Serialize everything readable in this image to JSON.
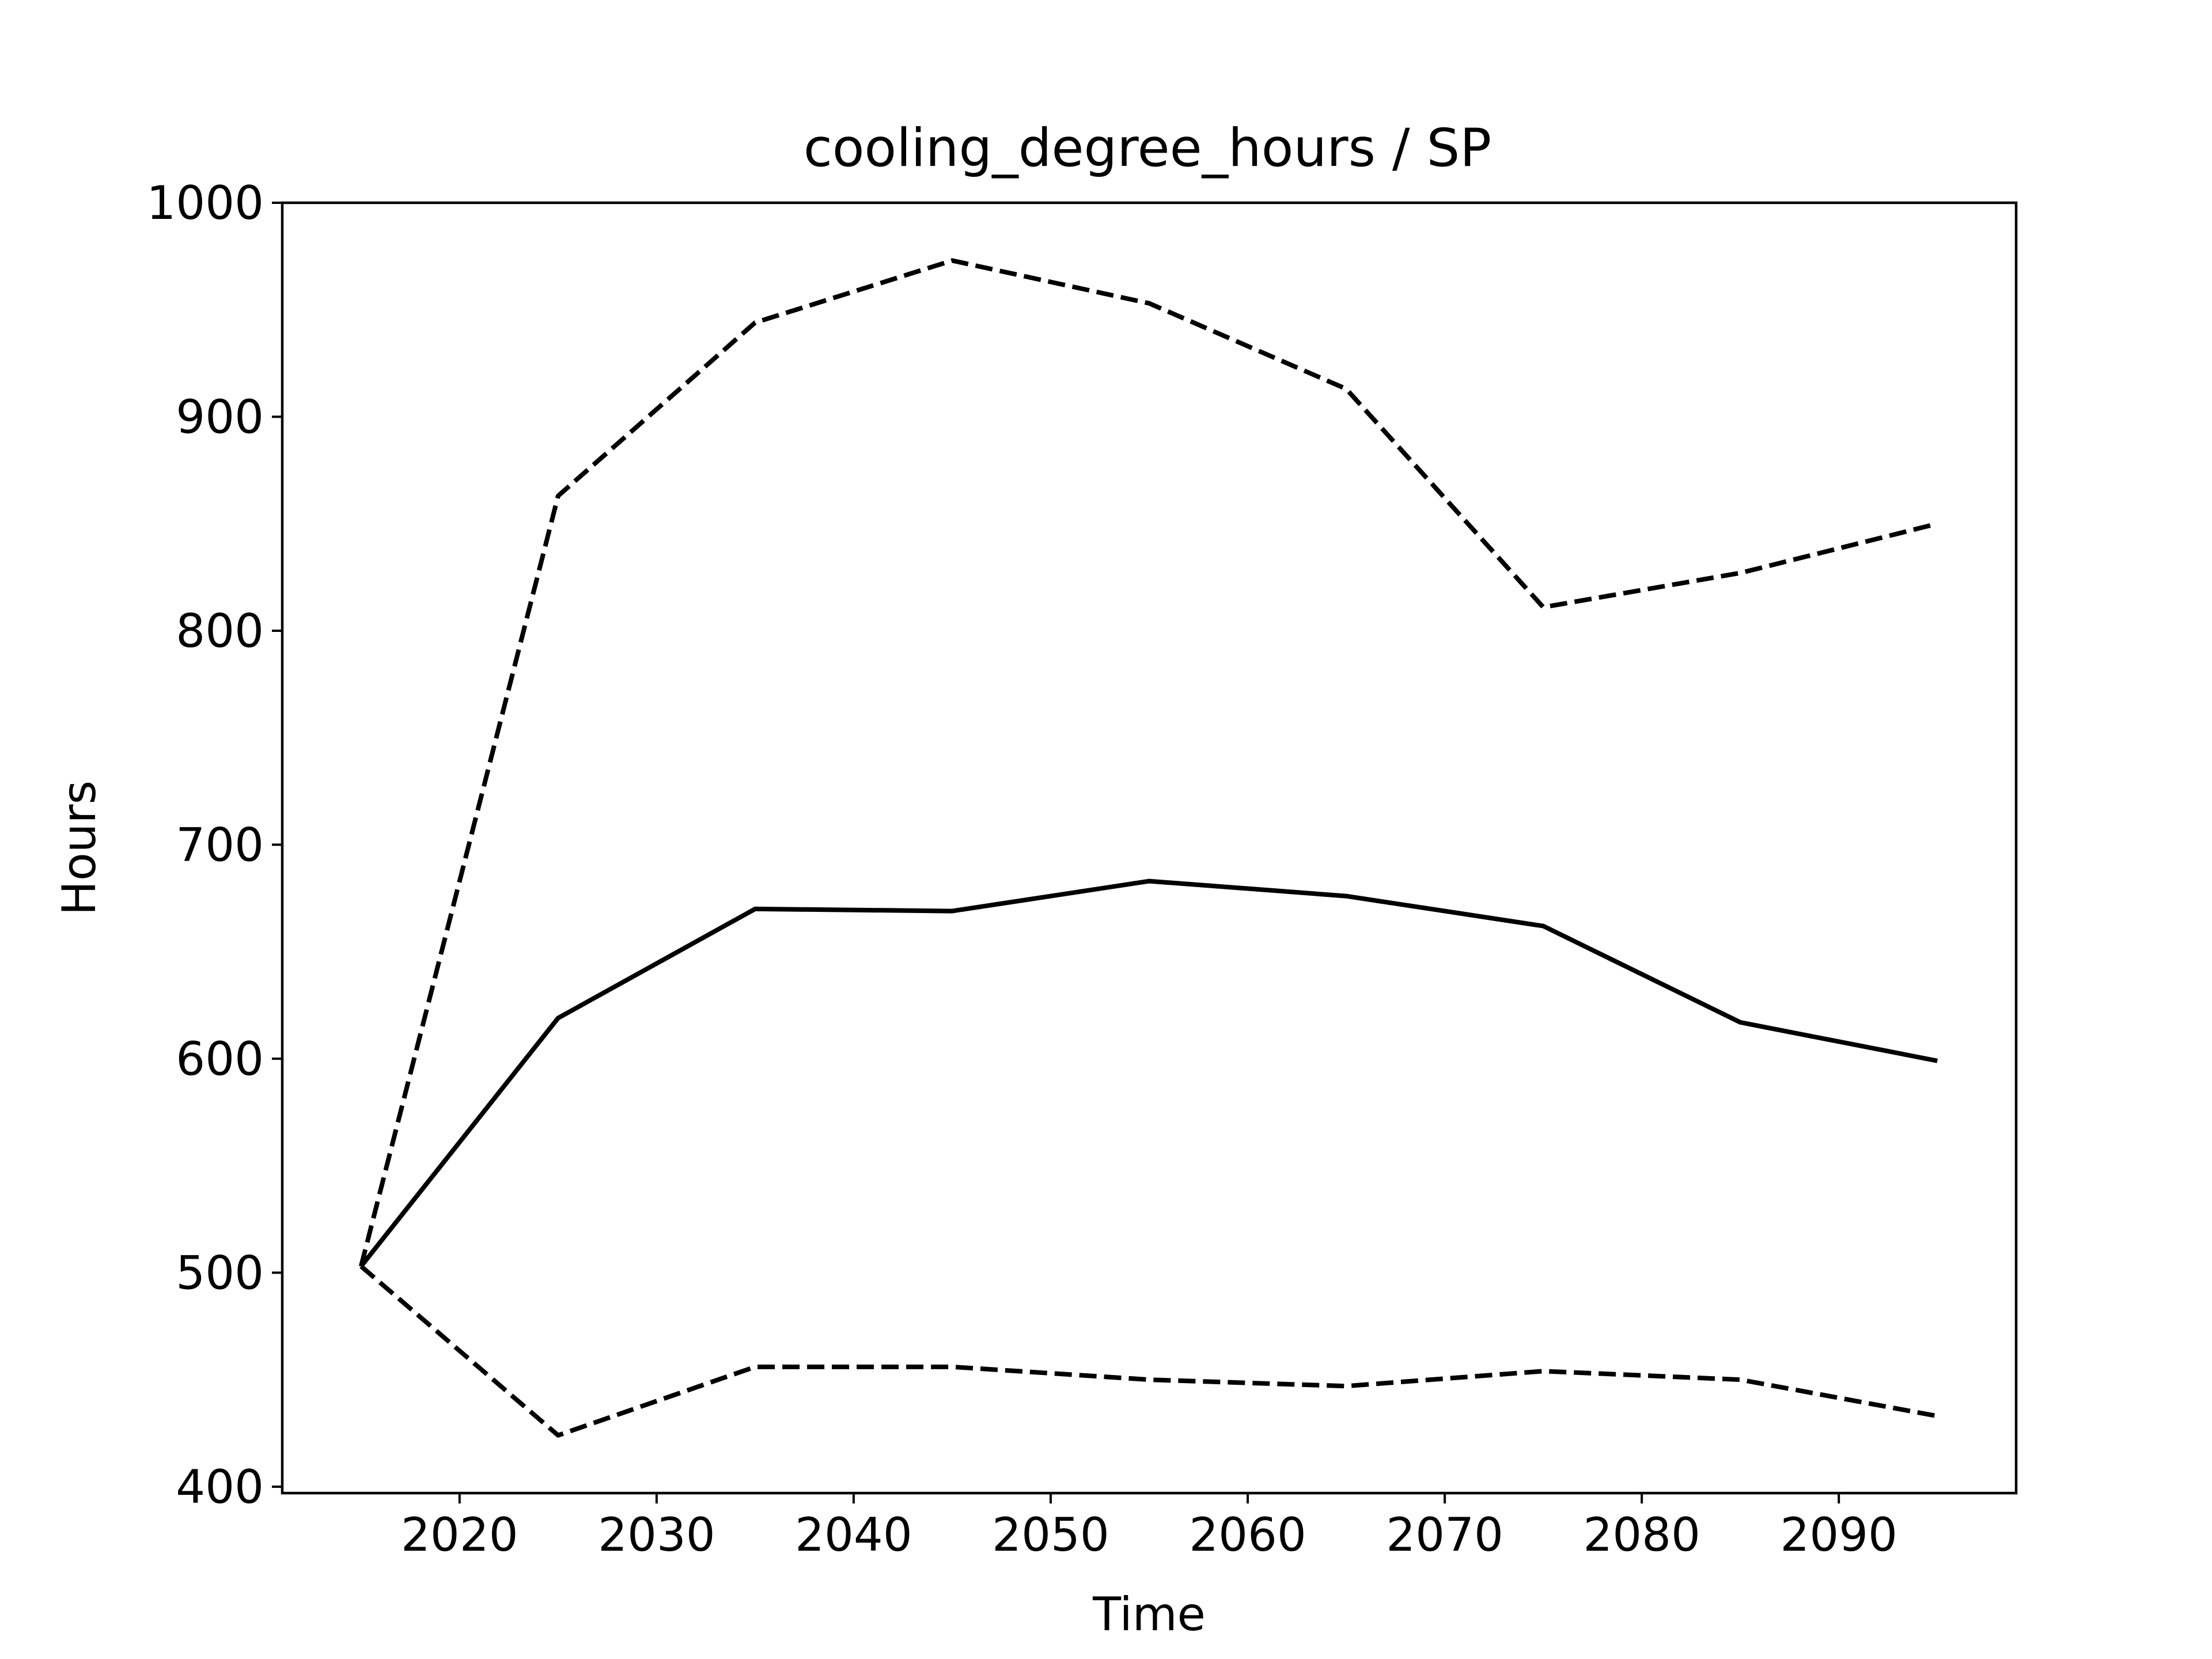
{
  "chart_data": {
    "type": "line",
    "title": "cooling_degree_hours / SP",
    "xlabel": "Time",
    "ylabel": "Hours",
    "xlim": [
      2011,
      2099
    ],
    "ylim": [
      397,
      1000
    ],
    "xticks": [
      2020,
      2030,
      2040,
      2050,
      2060,
      2070,
      2080,
      2090
    ],
    "yticks": [
      400,
      500,
      600,
      700,
      800,
      900,
      1000
    ],
    "grid": false,
    "x": [
      2015,
      2025,
      2035,
      2045,
      2055,
      2065,
      2075,
      2085,
      2095
    ],
    "series": [
      {
        "style": "dashed",
        "color": "#000000",
        "values": [
          503,
          863,
          944,
          973,
          953,
          913,
          811,
          827,
          850
        ]
      },
      {
        "style": "solid",
        "color": "#000000",
        "values": [
          503,
          619,
          670,
          669,
          683,
          676,
          662,
          617,
          599
        ]
      },
      {
        "style": "dashed",
        "color": "#000000",
        "values": [
          503,
          424,
          456,
          456,
          450,
          447,
          454,
          450,
          433
        ]
      }
    ]
  }
}
